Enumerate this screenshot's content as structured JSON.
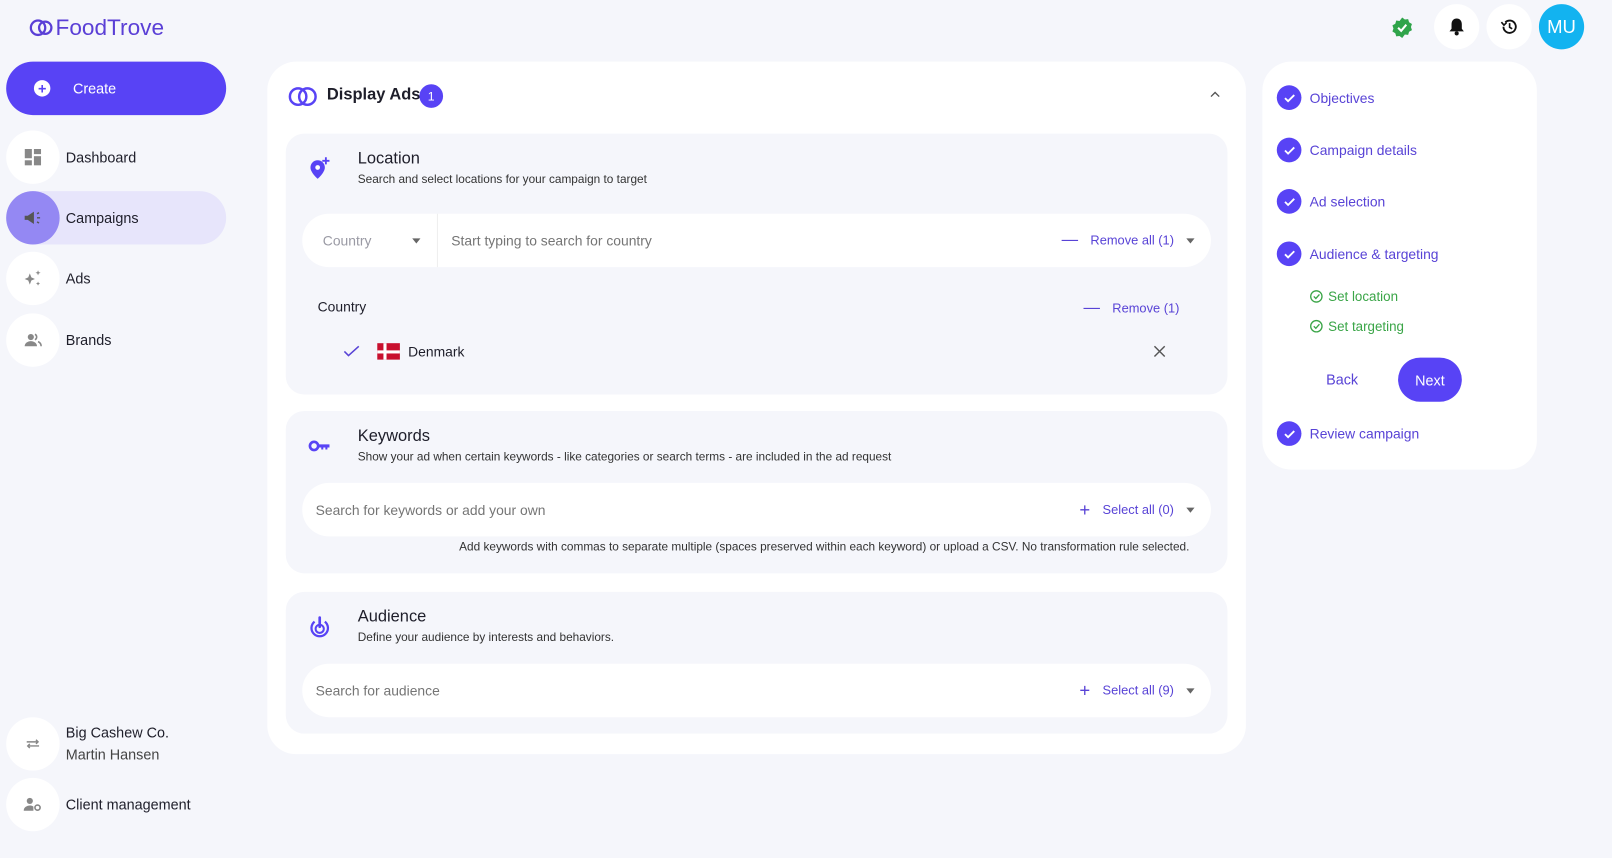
{
  "app": {
    "name": "FoodTrove",
    "avatar_initials": "MU",
    "colors": {
      "accent": "#5843f5",
      "success": "#3aa547",
      "avatar": "#12b3f0"
    }
  },
  "sidebar": {
    "create_label": "Create",
    "items": [
      {
        "label": "Dashboard",
        "icon": "dashboard-icon"
      },
      {
        "label": "Campaigns",
        "icon": "megaphone-icon",
        "active": true
      },
      {
        "label": "Ads",
        "icon": "sparkle-icon"
      },
      {
        "label": "Brands",
        "icon": "people-icon"
      }
    ],
    "account": {
      "company": "Big Cashew Co.",
      "user": "Martin Hansen"
    },
    "client_management": "Client management"
  },
  "main": {
    "title": "Display Ads",
    "badge": "1",
    "location": {
      "title": "Location",
      "subtitle": "Search and select locations for your campaign to target",
      "type_select": "Country",
      "search_placeholder": "Start typing to search for country",
      "remove_all": "Remove all (1)",
      "group_label": "Country",
      "remove_group": "Remove (1)",
      "selected": [
        {
          "name": "Denmark"
        }
      ]
    },
    "keywords": {
      "title": "Keywords",
      "subtitle": "Show your ad when certain keywords - like categories or search terms - are included in the ad request",
      "search_placeholder": "Search for keywords or add your own",
      "select_all": "Select all (0)",
      "hint": "Add keywords with commas to separate multiple (spaces preserved within each keyword) or upload a CSV. No transformation rule selected."
    },
    "audience": {
      "title": "Audience",
      "subtitle": "Define your audience by interests and behaviors.",
      "search_placeholder": "Search for audience",
      "select_all": "Select all (9)"
    }
  },
  "steps": {
    "items": [
      "Objectives",
      "Campaign details",
      "Ad selection",
      "Audience & targeting"
    ],
    "substeps": [
      "Set location",
      "Set targeting"
    ],
    "back": "Back",
    "next": "Next",
    "final": "Review campaign"
  }
}
